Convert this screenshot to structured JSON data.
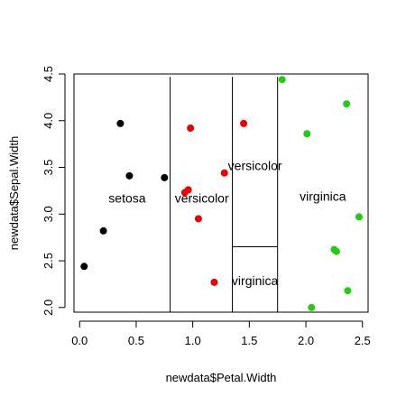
{
  "chart_data": {
    "type": "scatter",
    "title": "",
    "xlabel": "newdata$Petal.Width",
    "ylabel": "newdata$Sepal.Width",
    "xlim": [
      -0.05,
      2.55
    ],
    "ylim": [
      1.95,
      4.5
    ],
    "x_ticks": [
      0.0,
      0.5,
      1.0,
      1.5,
      2.0,
      2.5
    ],
    "x_tick_labels": [
      "0.0",
      "0.5",
      "1.0",
      "1.5",
      "2.0",
      "2.5"
    ],
    "y_ticks": [
      2.0,
      2.5,
      3.0,
      3.5,
      4.0,
      4.5
    ],
    "y_tick_labels": [
      "2.0",
      "2.5",
      "3.0",
      "3.5",
      "4.0",
      "4.5"
    ],
    "grid": false,
    "series": [
      {
        "color": "#000000",
        "points": [
          {
            "x": 0.04,
            "y": 2.44
          },
          {
            "x": 0.21,
            "y": 2.82
          },
          {
            "x": 0.36,
            "y": 3.97
          },
          {
            "x": 0.44,
            "y": 3.41
          },
          {
            "x": 0.75,
            "y": 3.39
          }
        ]
      },
      {
        "color": "#ee0000",
        "points": [
          {
            "x": 0.98,
            "y": 3.92
          },
          {
            "x": 0.93,
            "y": 3.23
          },
          {
            "x": 0.96,
            "y": 3.26
          },
          {
            "x": 1.05,
            "y": 2.95
          },
          {
            "x": 1.19,
            "y": 2.27
          },
          {
            "x": 1.28,
            "y": 3.44
          },
          {
            "x": 1.45,
            "y": 3.97
          }
        ]
      },
      {
        "color": "#22cc11",
        "points": [
          {
            "x": 1.79,
            "y": 4.44
          },
          {
            "x": 2.01,
            "y": 3.86
          },
          {
            "x": 2.05,
            "y": 2.0
          },
          {
            "x": 2.25,
            "y": 2.62
          },
          {
            "x": 2.27,
            "y": 2.6
          },
          {
            "x": 2.36,
            "y": 4.18
          },
          {
            "x": 2.37,
            "y": 2.18
          },
          {
            "x": 2.47,
            "y": 2.97
          }
        ]
      }
    ],
    "partition_lines": [
      {
        "x1": 0.8,
        "y1": 1.95,
        "x2": 0.8,
        "y2": 4.47
      },
      {
        "x1": 1.35,
        "y1": 1.95,
        "x2": 1.35,
        "y2": 4.47
      },
      {
        "x1": 1.75,
        "y1": 1.95,
        "x2": 1.75,
        "y2": 4.47
      },
      {
        "x1": 1.35,
        "y1": 2.65,
        "x2": 1.75,
        "y2": 2.65
      }
    ],
    "region_labels": [
      {
        "text": "setosa",
        "x": 0.42,
        "y": 3.17
      },
      {
        "text": "versicolor",
        "x": 1.08,
        "y": 3.17
      },
      {
        "text": "versicolor",
        "x": 1.55,
        "y": 3.52
      },
      {
        "text": "virginica",
        "x": 2.15,
        "y": 3.19
      },
      {
        "text": "virginica",
        "x": 1.55,
        "y": 2.29
      }
    ]
  }
}
